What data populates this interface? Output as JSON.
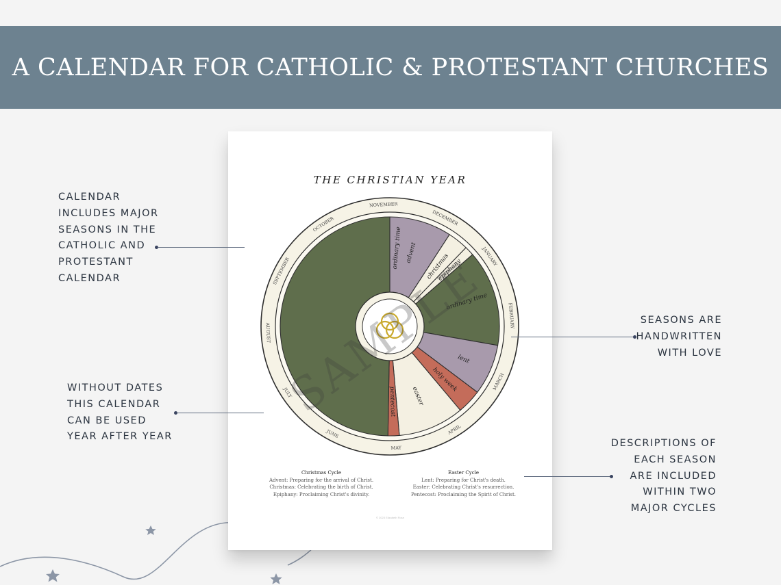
{
  "header": {
    "title": "A CALENDAR FOR CATHOLIC & PROTESTANT CHURCHES"
  },
  "sheet": {
    "title": "THE CHRISTIAN YEAR",
    "watermark": "SAMPLE",
    "copyright": "© 2023 Elizabeth Rose",
    "months": [
      "NOVEMBER",
      "DECEMBER",
      "JANUARY",
      "FEBRUARY",
      "MARCH",
      "APRIL",
      "MAY",
      "JUNE",
      "JULY",
      "AUGUST",
      "SEPTEMBER",
      "OCTOBER"
    ],
    "seasons": [
      {
        "name": "advent",
        "color": "#a89aac"
      },
      {
        "name": "christmas",
        "color": "#f4f0e2"
      },
      {
        "name": "epiphany",
        "color": "#f4f0e2"
      },
      {
        "name": "ordinary time",
        "color": "#5f6e4c"
      },
      {
        "name": "lent",
        "color": "#a89aac"
      },
      {
        "name": "holy week",
        "color": "#c46c5a"
      },
      {
        "name": "easter",
        "color": "#f4f0e2"
      },
      {
        "name": "pentecost",
        "color": "#c46c5a"
      },
      {
        "name": "ordinary time",
        "color": "#5f6e4c"
      }
    ],
    "cycles": {
      "christmas": {
        "title": "Christmas Cycle",
        "lines": [
          "Advent: Preparing for the arrival of Christ.",
          "Christmas: Celebrating the birth of Christ.",
          "Epiphany: Proclaiming Christ's divinity."
        ]
      },
      "easter": {
        "title": "Easter Cycle",
        "lines": [
          "Lent: Preparing for Christ's death.",
          "Easter: Celebrating Christ's resurrection.",
          "Pentecost: Proclaiming the Spirit of Christ."
        ]
      }
    }
  },
  "callouts": {
    "top_left": [
      "CALENDAR",
      "INCLUDES MAJOR",
      "SEASONS IN THE",
      "CATHOLIC AND",
      "PROTESTANT",
      "CALENDAR"
    ],
    "bottom_left": [
      "WITHOUT DATES",
      "THIS CALENDAR",
      "CAN BE USED",
      "YEAR AFTER YEAR"
    ],
    "top_right": [
      "SEASONS ARE",
      "HANDWRITTEN",
      "WITH LOVE"
    ],
    "bottom_right": [
      "DESCRIPTIONS OF",
      "EACH SEASON",
      "ARE INCLUDED",
      "WITHIN TWO",
      "MAJOR CYCLES"
    ]
  },
  "colors": {
    "banner": "#6d8290",
    "ordinary_time": "#5f6e4c",
    "advent_lent": "#a89aac",
    "holy_week_pentecost": "#c46c5a",
    "feast_cream": "#f4f0e2",
    "trinity_gold": "#c9a92c"
  }
}
